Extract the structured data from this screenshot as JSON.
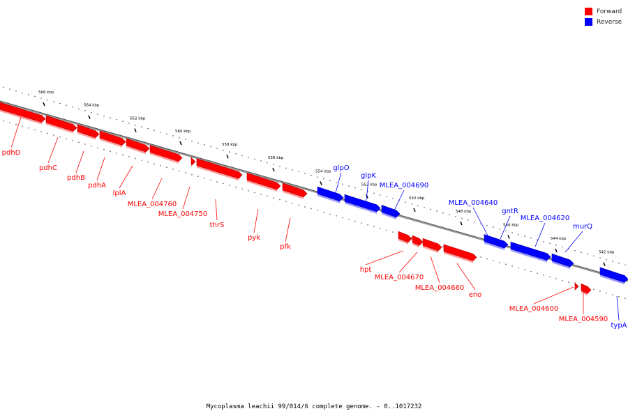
{
  "legend": {
    "forward_label": "Forward",
    "reverse_label": "Reverse",
    "forward_color": "#ff0000",
    "reverse_color": "#0000ff"
  },
  "caption": "Mycoplasma leachii 99/014/6 complete genome. - 0..1017232",
  "scale": {
    "ticks": [
      "566 kbp",
      "564 kbp",
      "562 kbp",
      "560 kbp",
      "558 kbp",
      "556 kbp",
      "554 kbp",
      "552 kbp",
      "550 kbp",
      "548 kbp",
      "546 kbp",
      "544 kbp",
      "542 kbp"
    ]
  },
  "genes": {
    "forward": [
      {
        "label": "pdhD"
      },
      {
        "label": "pdhC"
      },
      {
        "label": "pdhB"
      },
      {
        "label": "pdhA"
      },
      {
        "label": "lplA"
      },
      {
        "label": "MLEA_004760"
      },
      {
        "label": "MLEA_004750"
      },
      {
        "label": "thrS"
      },
      {
        "label": "pyk"
      },
      {
        "label": "pfk"
      }
    ],
    "reverse": [
      {
        "label": "glpO"
      },
      {
        "label": "glpK"
      },
      {
        "label": "MLEA_004690"
      },
      {
        "label": "MLEA_004640"
      },
      {
        "label": "gntR"
      },
      {
        "label": "MLEA_004620"
      },
      {
        "label": "murQ"
      }
    ],
    "lower_forward": [
      {
        "label": "hpt"
      },
      {
        "label": "MLEA_004670"
      },
      {
        "label": "MLEA_004660"
      },
      {
        "label": "eno"
      },
      {
        "label": "MLEA_004600"
      },
      {
        "label": "MLEA_004590"
      }
    ],
    "lower_reverse": [
      {
        "label": "typA"
      }
    ]
  }
}
